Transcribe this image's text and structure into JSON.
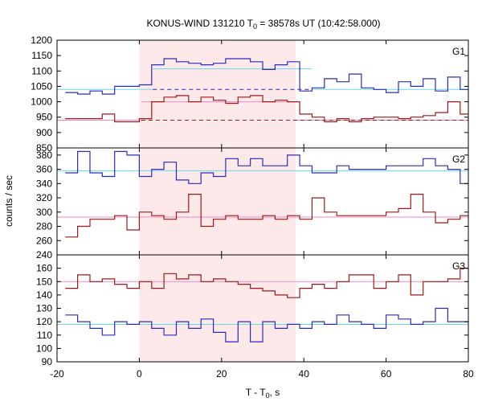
{
  "chart_data": {
    "type": "line",
    "title": "KONUS-WIND 131210 T",
    "title_sub": "0",
    "title_rest": " = 38578s UT (10:42:58.000)",
    "xlabel": "T - T",
    "xlabel_sub": "0",
    "xlabel_rest": ", s",
    "ylabel": "counts / sec",
    "xlim": [
      -20,
      80
    ],
    "xticks": [
      -20,
      0,
      20,
      40,
      60,
      80
    ],
    "shaded_interval": [
      0,
      38
    ],
    "colors": {
      "blue": "#2b2bbd",
      "red": "#a01818",
      "cyan": "#6ad7ec",
      "pink": "#f08ac0",
      "shade": "#fde8ea"
    },
    "panels": [
      {
        "name": "G1",
        "ylim": [
          850,
          1200
        ],
        "yticks": [
          850,
          900,
          950,
          1000,
          1050,
          1100,
          1150,
          1200
        ],
        "series": [
          {
            "color_key": "blue",
            "x": [
              -18,
              -15,
              -12,
              -9,
              -6,
              0,
              3,
              6,
              9,
              12,
              15,
              18,
              21,
              24,
              27,
              30,
              33,
              36,
              39,
              42,
              45,
              48,
              51,
              54,
              57,
              60,
              63,
              66,
              69,
              72,
              75,
              78,
              80
            ],
            "y": [
              1030,
              1025,
              1035,
              1025,
              1050,
              1055,
              1120,
              1140,
              1130,
              1125,
              1120,
              1125,
              1140,
              1140,
              1130,
              1105,
              1120,
              1130,
              1035,
              1045,
              1075,
              1065,
              1090,
              1045,
              1040,
              1030,
              1065,
              1050,
              1075,
              1035,
              1080,
              1040,
              1040
            ]
          },
          {
            "color_key": "red",
            "x": [
              -18,
              -15,
              -12,
              -9,
              -6,
              0,
              3,
              6,
              9,
              12,
              15,
              18,
              21,
              24,
              27,
              30,
              33,
              36,
              39,
              42,
              45,
              48,
              51,
              54,
              57,
              60,
              63,
              66,
              69,
              72,
              75,
              78,
              80
            ],
            "y": [
              945,
              945,
              945,
              960,
              935,
              945,
              1000,
              1015,
              1020,
              1000,
              1015,
              1005,
              995,
              1015,
              1020,
              1000,
              1005,
              1000,
              960,
              950,
              935,
              945,
              935,
              945,
              950,
              950,
              945,
              950,
              955,
              965,
              1000,
              960,
              960
            ]
          }
        ],
        "levels": [
          {
            "color_key": "cyan",
            "dashed": false,
            "segments": [
              [
                -20,
                3.3,
                1040
              ],
              [
                3.3,
                42,
                1107
              ],
              [
                42,
                80,
                1040
              ]
            ]
          },
          {
            "color_key": "blue",
            "dashed": true,
            "segments": [
              [
                3.3,
                42,
                1040
              ]
            ]
          },
          {
            "color_key": "pink",
            "dashed": false,
            "segments": [
              [
                -20,
                0.5,
                940
              ],
              [
                0.5,
                38,
                1000
              ],
              [
                38,
                80,
                940
              ]
            ]
          },
          {
            "color_key": "red",
            "dashed": true,
            "segments": [
              [
                0.5,
                80,
                940
              ]
            ]
          }
        ]
      },
      {
        "name": "G2",
        "ylim": [
          240,
          390
        ],
        "yticks": [
          240,
          260,
          280,
          300,
          320,
          340,
          360,
          380
        ],
        "series": [
          {
            "color_key": "blue",
            "x": [
              -18,
              -15,
              -12,
              -9,
              -6,
              -3,
              0,
              3,
              6,
              9,
              12,
              15,
              18,
              21,
              24,
              27,
              30,
              33,
              36,
              39,
              42,
              45,
              48,
              51,
              54,
              57,
              60,
              63,
              66,
              69,
              72,
              75,
              78,
              80
            ],
            "y": [
              355,
              385,
              355,
              350,
              385,
              380,
              350,
              360,
              370,
              345,
              340,
              355,
              350,
              375,
              365,
              375,
              365,
              365,
              380,
              365,
              355,
              355,
              365,
              360,
              360,
              360,
              365,
              365,
              365,
              375,
              365,
              360,
              340,
              340
            ]
          },
          {
            "color_key": "red",
            "x": [
              -18,
              -15,
              -12,
              -9,
              -6,
              -3,
              0,
              3,
              6,
              9,
              12,
              15,
              18,
              21,
              24,
              27,
              30,
              33,
              36,
              39,
              42,
              45,
              48,
              51,
              54,
              57,
              60,
              63,
              66,
              69,
              72,
              75,
              78,
              80
            ],
            "y": [
              265,
              280,
              290,
              290,
              295,
              275,
              300,
              295,
              290,
              300,
              325,
              280,
              290,
              295,
              290,
              290,
              295,
              290,
              295,
              290,
              320,
              300,
              295,
              295,
              295,
              295,
              300,
              305,
              325,
              300,
              285,
              290,
              295,
              295
            ]
          }
        ],
        "levels": [
          {
            "color_key": "cyan",
            "dashed": false,
            "segments": [
              [
                -20,
                80,
                358
              ]
            ]
          },
          {
            "color_key": "pink",
            "dashed": false,
            "segments": [
              [
                -20,
                80,
                293
              ]
            ]
          }
        ]
      },
      {
        "name": "G3",
        "ylim": [
          90,
          170
        ],
        "yticks": [
          90,
          100,
          110,
          120,
          130,
          140,
          150,
          160
        ],
        "series": [
          {
            "color_key": "red",
            "x": [
              -18,
              -15,
              -12,
              -9,
              -6,
              -3,
              0,
              3,
              6,
              9,
              12,
              15,
              18,
              21,
              24,
              27,
              30,
              33,
              36,
              39,
              42,
              45,
              48,
              51,
              54,
              57,
              60,
              63,
              66,
              69,
              72,
              75,
              78,
              80
            ],
            "y": [
              145,
              155,
              150,
              152,
              148,
              145,
              150,
              145,
              156,
              152,
              155,
              150,
              152,
              150,
              148,
              145,
              143,
              140,
              138,
              145,
              148,
              145,
              150,
              155,
              155,
              145,
              150,
              155,
              140,
              150,
              150,
              152,
              160,
              160
            ]
          },
          {
            "color_key": "blue",
            "x": [
              -18,
              -15,
              -12,
              -9,
              -6,
              -3,
              0,
              3,
              6,
              9,
              12,
              15,
              18,
              21,
              24,
              27,
              30,
              33,
              36,
              39,
              42,
              45,
              48,
              51,
              54,
              57,
              60,
              63,
              66,
              69,
              72,
              75,
              78,
              80
            ],
            "y": [
              125,
              120,
              115,
              110,
              120,
              118,
              120,
              115,
              110,
              120,
              115,
              122,
              112,
              105,
              120,
              105,
              120,
              115,
              118,
              115,
              120,
              118,
              125,
              120,
              118,
              115,
              125,
              122,
              118,
              120,
              130,
              120,
              120,
              120
            ]
          }
        ],
        "levels": [
          {
            "color_key": "cyan",
            "dashed": false,
            "segments": [
              [
                -20,
                80,
                118
              ]
            ]
          },
          {
            "color_key": "pink",
            "dashed": false,
            "segments": [
              [
                -20,
                80,
                150
              ]
            ]
          }
        ]
      }
    ]
  }
}
